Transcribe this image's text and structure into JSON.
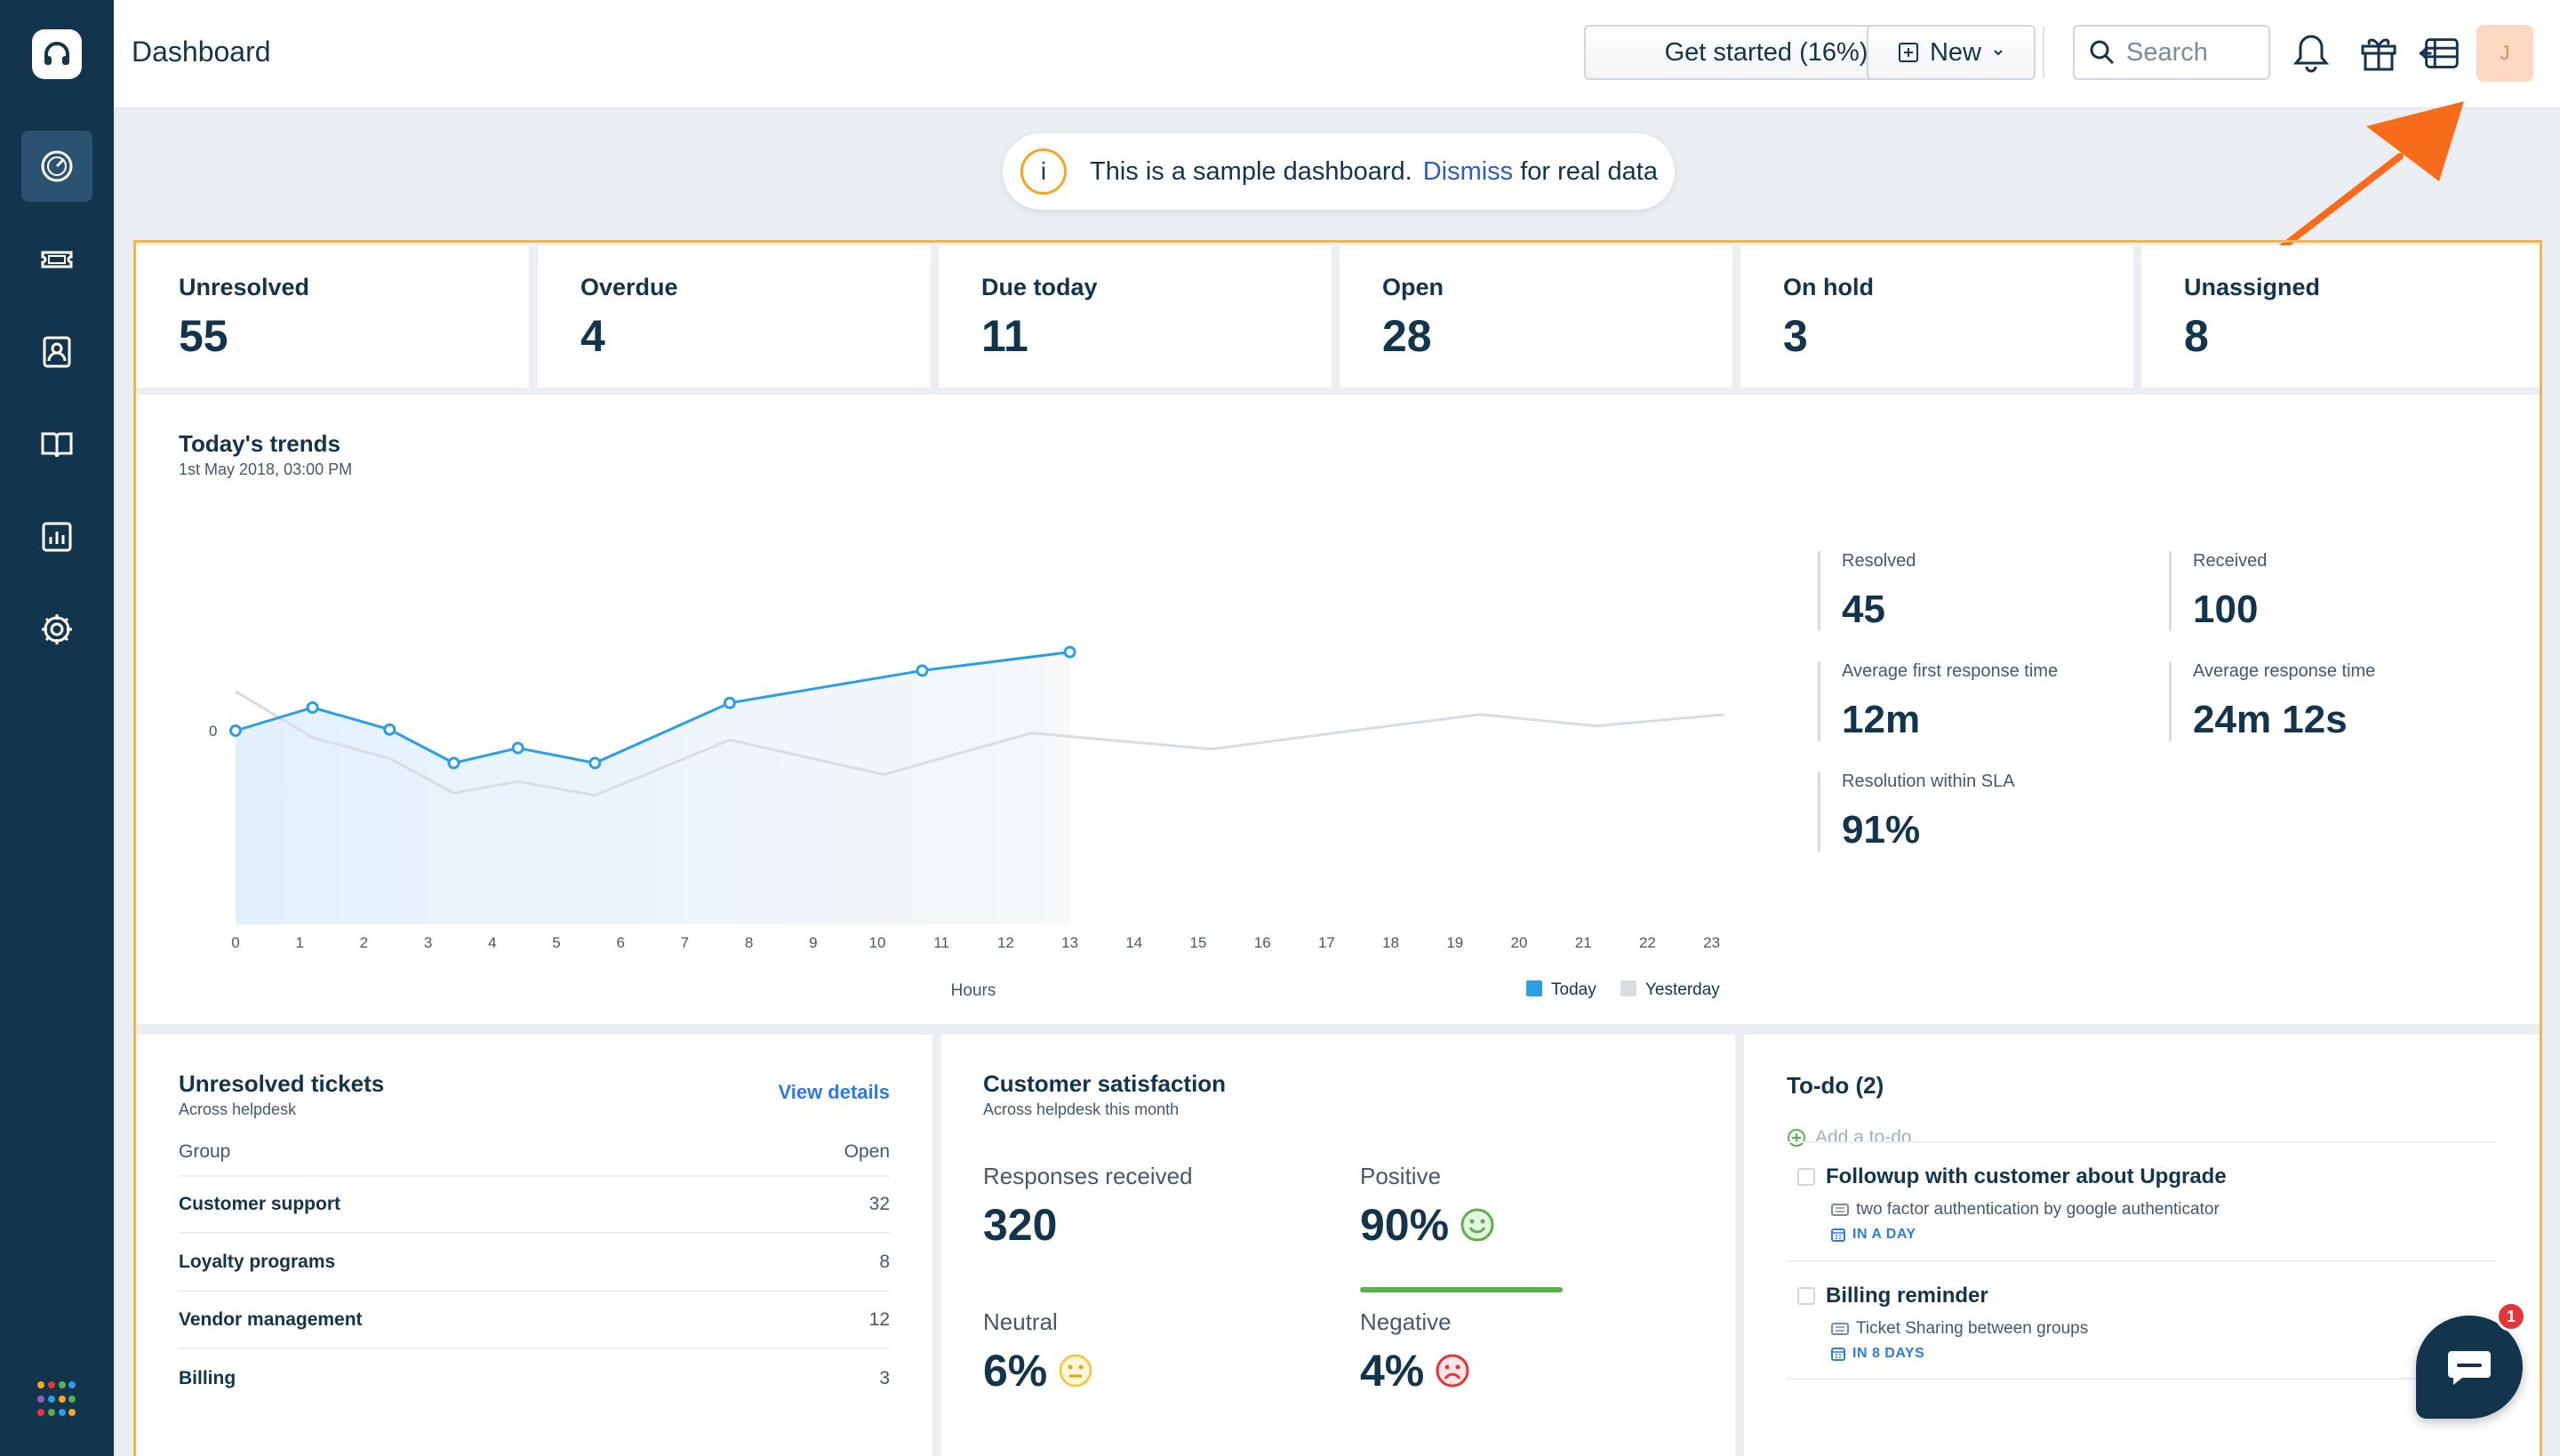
{
  "header": {
    "title": "Dashboard",
    "get_started_label": "Get started (16%)",
    "new_label": "New",
    "search_placeholder": "Search",
    "avatar_initial": "J"
  },
  "notice": {
    "text": "This is a sample dashboard.",
    "link": "Dismiss",
    "suffix": "for real data",
    "icon_text": "i"
  },
  "stats": [
    {
      "label": "Unresolved",
      "value": "55"
    },
    {
      "label": "Overdue",
      "value": "4"
    },
    {
      "label": "Due today",
      "value": "11"
    },
    {
      "label": "Open",
      "value": "28"
    },
    {
      "label": "On hold",
      "value": "3"
    },
    {
      "label": "Unassigned",
      "value": "8"
    }
  ],
  "trends": {
    "title": "Today's trends",
    "subtitle": "1st May 2018, 03:00 PM",
    "metrics": [
      {
        "label": "Resolved",
        "value": "45"
      },
      {
        "label": "Received",
        "value": "100"
      },
      {
        "label": "Average first response time",
        "value": "12m"
      },
      {
        "label": "Average response time",
        "value": "24m 12s"
      },
      {
        "label": "Resolution within SLA",
        "value": "91%"
      }
    ]
  },
  "chart_data": {
    "type": "line",
    "xlabel": "Hours",
    "ylabel": "",
    "x": [
      0,
      1,
      2,
      3,
      4,
      5,
      6,
      7,
      8,
      9,
      10,
      11,
      12,
      13,
      14,
      15,
      16,
      17,
      18,
      19,
      20,
      21,
      22,
      23
    ],
    "y_tick_labels": [
      "0"
    ],
    "series": [
      {
        "name": "Today",
        "color": "#2c9ee5",
        "x": [
          0,
          1.2,
          2.4,
          3.4,
          4.4,
          5.6,
          7.7,
          10.7,
          13.0
        ],
        "values": [
          0,
          1,
          0.05,
          -1.4,
          -0.75,
          -1.4,
          1.2,
          2.6,
          3.4
        ]
      },
      {
        "name": "Yesterday",
        "color": "#d8dde2",
        "x": [
          0,
          1.2,
          2.4,
          3.4,
          4.4,
          5.6,
          7.7,
          10.1,
          12.4,
          15.2,
          17.4,
          19.4,
          21.2,
          23.2
        ],
        "values": [
          1.7,
          -0.3,
          -1.2,
          -2.7,
          -2.2,
          -2.8,
          -0.4,
          -1.9,
          -0.1,
          -0.8,
          0,
          0.7,
          0.2,
          0.7
        ]
      }
    ],
    "legend": [
      "Today",
      "Yesterday"
    ],
    "legend_position": "bottom-right",
    "grid": false
  },
  "unresolved": {
    "title": "Unresolved tickets",
    "subtitle": "Across helpdesk",
    "view_details": "View details",
    "col_group": "Group",
    "col_open": "Open",
    "rows": [
      {
        "group": "Customer support",
        "open": "32"
      },
      {
        "group": "Loyalty programs",
        "open": "8"
      },
      {
        "group": "Vendor management",
        "open": "12"
      },
      {
        "group": "Billing",
        "open": "3"
      }
    ]
  },
  "csat": {
    "title": "Customer satisfaction",
    "subtitle": "Across helpdesk this month",
    "responses_label": "Responses received",
    "responses_value": "320",
    "positive_label": "Positive",
    "positive_value": "90%",
    "neutral_label": "Neutral",
    "neutral_value": "6%",
    "negative_label": "Negative",
    "negative_value": "4%"
  },
  "todo": {
    "title": "To-do (2)",
    "add_label": "Add a to-do",
    "items": [
      {
        "title": "Followup with customer about Upgrade",
        "ticket": "two factor authentication by google authenticator",
        "due": "IN A DAY"
      },
      {
        "title": "Billing reminder",
        "ticket": "Ticket Sharing between groups",
        "due": "IN 8 DAYS"
      }
    ]
  },
  "chat": {
    "badge": "1"
  }
}
